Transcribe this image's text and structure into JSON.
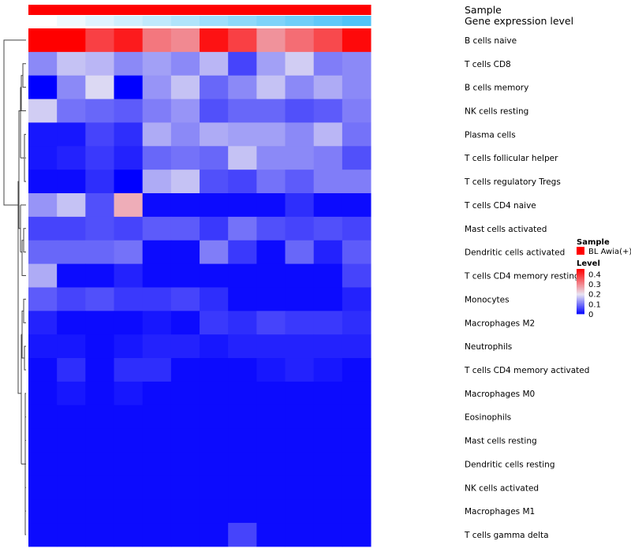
{
  "chart_data": {
    "type": "heatmap",
    "annotation_tracks": [
      {
        "name": "Sample",
        "label": "Sample",
        "color": "#ff0000"
      },
      {
        "name": "Gene expression level",
        "label": "Gene expression level",
        "low_color": "#ffffff",
        "high_color": "#4fc3f7"
      }
    ],
    "rows": [
      "B cells naive",
      "T cells CD8",
      "B cells memory",
      "NK cells resting",
      "Plasma cells",
      "T cells follicular helper",
      "T cells regulatory  Tregs",
      "T cells CD4 naive",
      "Mast cells activated",
      "Dendritic cells activated",
      "T cells CD4 memory resting",
      "Monocytes",
      "Macrophages M2",
      "Neutrophils",
      "T cells CD4 memory activated",
      "Macrophages M0",
      "Eosinophils",
      "Mast cells resting",
      "Dendritic cells resting",
      "NK cells activated",
      "Macrophages M1",
      "T cells gamma delta"
    ],
    "n_cols": 12,
    "values": [
      [
        0.45,
        0.45,
        0.38,
        0.42,
        0.32,
        0.3,
        0.43,
        0.38,
        0.29,
        0.33,
        0.37,
        0.44
      ],
      [
        0.12,
        0.17,
        0.16,
        0.12,
        0.14,
        0.12,
        0.16,
        0.06,
        0.14,
        0.18,
        0.11,
        0.12
      ],
      [
        0.0,
        0.12,
        0.19,
        0.0,
        0.13,
        0.17,
        0.09,
        0.12,
        0.17,
        0.12,
        0.15,
        0.12
      ],
      [
        0.18,
        0.1,
        0.09,
        0.08,
        0.11,
        0.13,
        0.07,
        0.09,
        0.09,
        0.07,
        0.08,
        0.11
      ],
      [
        0.02,
        0.02,
        0.06,
        0.04,
        0.15,
        0.12,
        0.15,
        0.14,
        0.14,
        0.12,
        0.16,
        0.1
      ],
      [
        0.02,
        0.03,
        0.05,
        0.03,
        0.09,
        0.1,
        0.09,
        0.17,
        0.12,
        0.12,
        0.11,
        0.07
      ],
      [
        0.01,
        0.01,
        0.04,
        0.0,
        0.15,
        0.17,
        0.07,
        0.06,
        0.1,
        0.08,
        0.11,
        0.11
      ],
      [
        0.13,
        0.17,
        0.07,
        0.26,
        0.01,
        0.01,
        0.01,
        0.01,
        0.01,
        0.04,
        0.01,
        0.01
      ],
      [
        0.06,
        0.06,
        0.07,
        0.06,
        0.08,
        0.08,
        0.05,
        0.1,
        0.07,
        0.06,
        0.07,
        0.06
      ],
      [
        0.09,
        0.09,
        0.09,
        0.1,
        0.01,
        0.01,
        0.11,
        0.05,
        0.01,
        0.09,
        0.03,
        0.08
      ],
      [
        0.15,
        0.01,
        0.01,
        0.03,
        0.01,
        0.01,
        0.01,
        0.01,
        0.01,
        0.01,
        0.01,
        0.06
      ],
      [
        0.08,
        0.06,
        0.07,
        0.05,
        0.05,
        0.06,
        0.04,
        0.01,
        0.01,
        0.01,
        0.01,
        0.03
      ],
      [
        0.03,
        0.01,
        0.01,
        0.01,
        0.02,
        0.01,
        0.05,
        0.04,
        0.06,
        0.05,
        0.05,
        0.04
      ],
      [
        0.02,
        0.02,
        0.01,
        0.02,
        0.03,
        0.03,
        0.02,
        0.03,
        0.03,
        0.03,
        0.03,
        0.03
      ],
      [
        0.01,
        0.04,
        0.01,
        0.04,
        0.04,
        0.01,
        0.01,
        0.01,
        0.02,
        0.03,
        0.02,
        0.01
      ],
      [
        0.01,
        0.02,
        0.01,
        0.02,
        0.01,
        0.01,
        0.01,
        0.01,
        0.01,
        0.01,
        0.01,
        0.01
      ],
      [
        0.01,
        0.01,
        0.01,
        0.01,
        0.01,
        0.01,
        0.01,
        0.01,
        0.01,
        0.01,
        0.01,
        0.01
      ],
      [
        0.01,
        0.01,
        0.01,
        0.01,
        0.01,
        0.01,
        0.01,
        0.01,
        0.01,
        0.01,
        0.01,
        0.01
      ],
      [
        0.01,
        0.01,
        0.01,
        0.01,
        0.01,
        0.01,
        0.01,
        0.01,
        0.01,
        0.01,
        0.01,
        0.01
      ],
      [
        0.01,
        0.01,
        0.01,
        0.01,
        0.01,
        0.01,
        0.01,
        0.01,
        0.01,
        0.01,
        0.01,
        0.01
      ],
      [
        0.01,
        0.01,
        0.01,
        0.01,
        0.01,
        0.01,
        0.01,
        0.01,
        0.01,
        0.01,
        0.01,
        0.01
      ],
      [
        0.01,
        0.01,
        0.01,
        0.01,
        0.01,
        0.01,
        0.01,
        0.06,
        0.01,
        0.01,
        0.01,
        0.01
      ]
    ],
    "gene_expression_level": [
      0.0,
      0.09,
      0.18,
      0.27,
      0.36,
      0.45,
      0.55,
      0.64,
      0.73,
      0.82,
      0.91,
      1.0
    ],
    "color_scale": {
      "min": 0,
      "max": 0.45,
      "stops": [
        {
          "value": 0,
          "color": "#0000ff"
        },
        {
          "value": 0.2,
          "color": "#e8e4f2"
        },
        {
          "value": 0.45,
          "color": "#ff0000"
        }
      ]
    },
    "dendrogram_rows": true,
    "legend": {
      "placement": "right",
      "sample_title": "Sample",
      "sample_item": "BL Awia(+)",
      "sample_color": "#ff0000",
      "level_title": "Level",
      "level_ticks": [
        "0.4",
        "0.3",
        "0.2",
        "0.1",
        "0"
      ],
      "level_tick_values": [
        0.4,
        0.3,
        0.2,
        0.1,
        0
      ]
    }
  }
}
